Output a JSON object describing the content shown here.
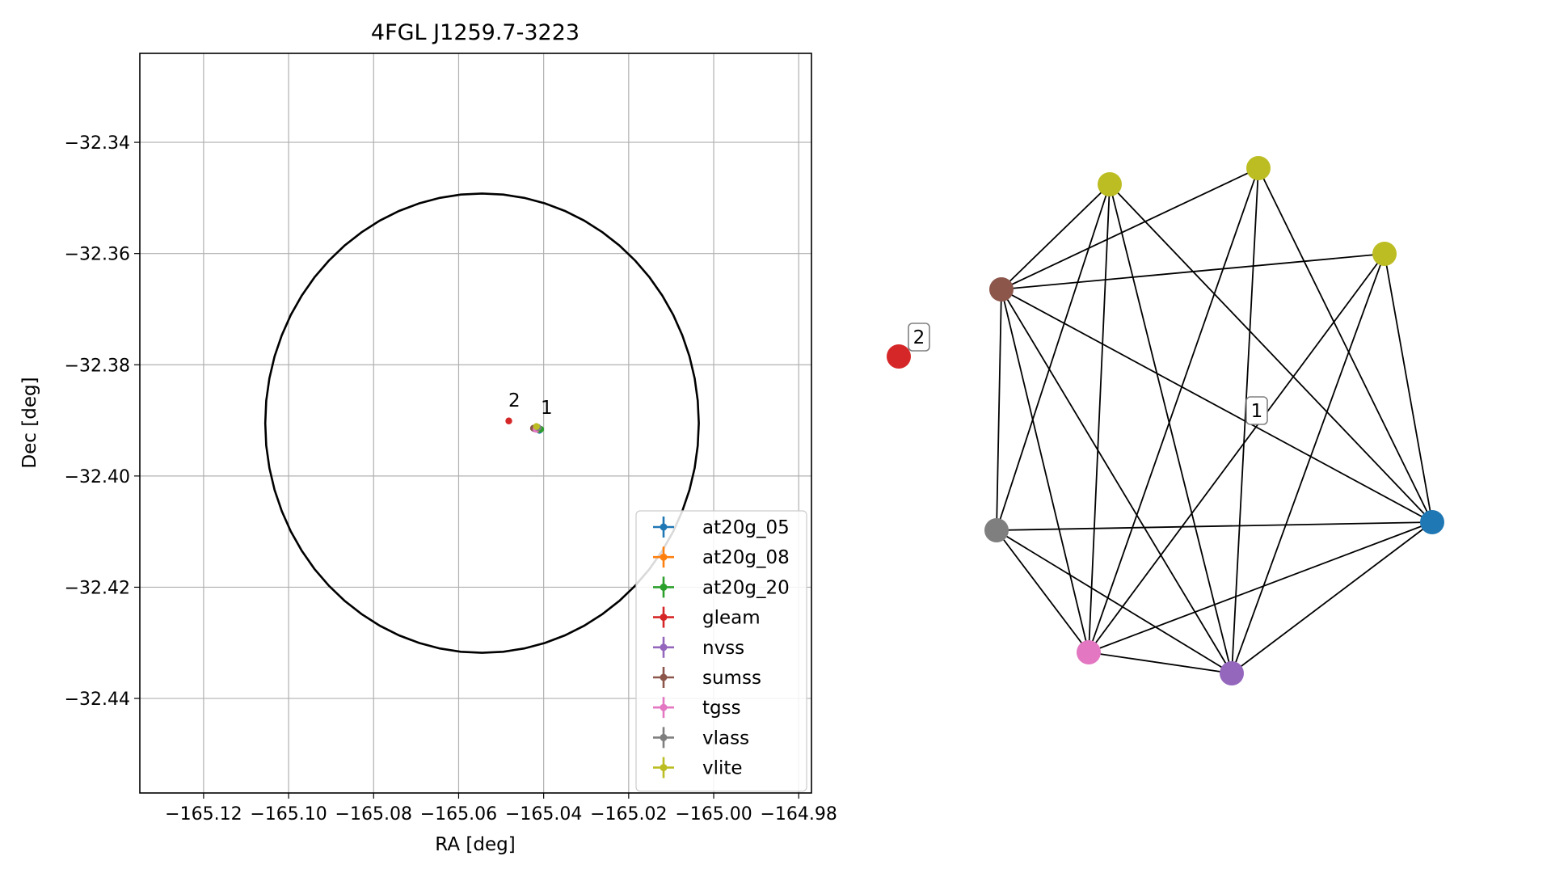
{
  "chart_data": [
    {
      "type": "scatter",
      "title": "4FGL J1259.7-3223",
      "xlabel": "RA [deg]",
      "ylabel": "Dec [deg]",
      "xlim": [
        -165.135,
        -164.977
      ],
      "ylim": [
        -32.457,
        -32.324
      ],
      "grid": true,
      "xticks": [
        -165.12,
        -165.1,
        -165.08,
        -165.06,
        -165.04,
        -165.02,
        -165.0,
        -164.98
      ],
      "xtick_labels": [
        "−165.12",
        "−165.10",
        "−165.08",
        "−165.06",
        "−165.04",
        "−165.02",
        "−165.00",
        "−164.98"
      ],
      "yticks": [
        -32.34,
        -32.36,
        -32.38,
        -32.4,
        -32.42,
        -32.44
      ],
      "ytick_labels": [
        "−32.34",
        "−32.36",
        "−32.38",
        "−32.40",
        "−32.42",
        "−32.44"
      ],
      "ellipse": {
        "center": [
          -165.0545,
          -32.3905
        ],
        "radius_x": 0.051,
        "radius_y": 0.0413,
        "color": "#000000"
      },
      "legend_position": "lower-right",
      "series": [
        {
          "name": "at20g_05",
          "color": "#1f77b4",
          "x": [
            -165.041
          ],
          "y": [
            -32.3918
          ]
        },
        {
          "name": "at20g_08",
          "color": "#ff7f0e",
          "x": [
            -165.0412
          ],
          "y": [
            -32.3916
          ]
        },
        {
          "name": "at20g_20",
          "color": "#2ca02c",
          "x": [
            -165.0407
          ],
          "y": [
            -32.3916
          ]
        },
        {
          "name": "gleam",
          "color": "#d62728",
          "x": [
            -165.0482
          ],
          "y": [
            -32.3901
          ]
        },
        {
          "name": "nvss",
          "color": "#9467bd",
          "x": [
            -165.0422
          ],
          "y": [
            -32.3915
          ]
        },
        {
          "name": "sumss",
          "color": "#8c564b",
          "x": [
            -165.0424
          ],
          "y": [
            -32.3914
          ]
        },
        {
          "name": "tgss",
          "color": "#e377c2",
          "x": [
            -165.0418
          ],
          "y": [
            -32.3916
          ]
        },
        {
          "name": "vlass",
          "color": "#7f7f7f",
          "x": [
            -165.0413
          ],
          "y": [
            -32.3913
          ]
        },
        {
          "name": "vlite",
          "color": "#bcbd22",
          "x": [
            -165.0417
          ],
          "y": [
            -32.3911
          ]
        }
      ],
      "annotations": [
        {
          "text": "2",
          "x": -165.0469,
          "y": -32.3875
        },
        {
          "text": "1",
          "x": -165.0393,
          "y": -32.3888
        }
      ]
    },
    {
      "type": "network",
      "nodes": [
        {
          "id": "vlite_a",
          "color": "#bcbd22"
        },
        {
          "id": "vlite_b",
          "color": "#bcbd22"
        },
        {
          "id": "vlite_c",
          "color": "#bcbd22"
        },
        {
          "id": "sumss",
          "color": "#8c564b"
        },
        {
          "id": "gleam",
          "color": "#d62728"
        },
        {
          "id": "vlass",
          "color": "#7f7f7f"
        },
        {
          "id": "tgss",
          "color": "#e377c2"
        },
        {
          "id": "nvss",
          "color": "#9467bd"
        },
        {
          "id": "at20g",
          "color": "#1f77b4"
        }
      ],
      "edges": [
        [
          "vlite_a",
          "sumss"
        ],
        [
          "vlite_a",
          "vlass"
        ],
        [
          "vlite_a",
          "tgss"
        ],
        [
          "vlite_a",
          "nvss"
        ],
        [
          "vlite_a",
          "at20g"
        ],
        [
          "vlite_b",
          "sumss"
        ],
        [
          "vlite_b",
          "tgss"
        ],
        [
          "vlite_b",
          "nvss"
        ],
        [
          "vlite_b",
          "at20g"
        ],
        [
          "vlite_c",
          "sumss"
        ],
        [
          "vlite_c",
          "tgss"
        ],
        [
          "vlite_c",
          "nvss"
        ],
        [
          "vlite_c",
          "at20g"
        ],
        [
          "sumss",
          "vlass"
        ],
        [
          "sumss",
          "tgss"
        ],
        [
          "sumss",
          "nvss"
        ],
        [
          "sumss",
          "at20g"
        ],
        [
          "vlass",
          "tgss"
        ],
        [
          "vlass",
          "nvss"
        ],
        [
          "vlass",
          "at20g"
        ],
        [
          "tgss",
          "nvss"
        ],
        [
          "tgss",
          "at20g"
        ],
        [
          "nvss",
          "at20g"
        ]
      ],
      "labels": [
        "1",
        "2"
      ]
    }
  ]
}
